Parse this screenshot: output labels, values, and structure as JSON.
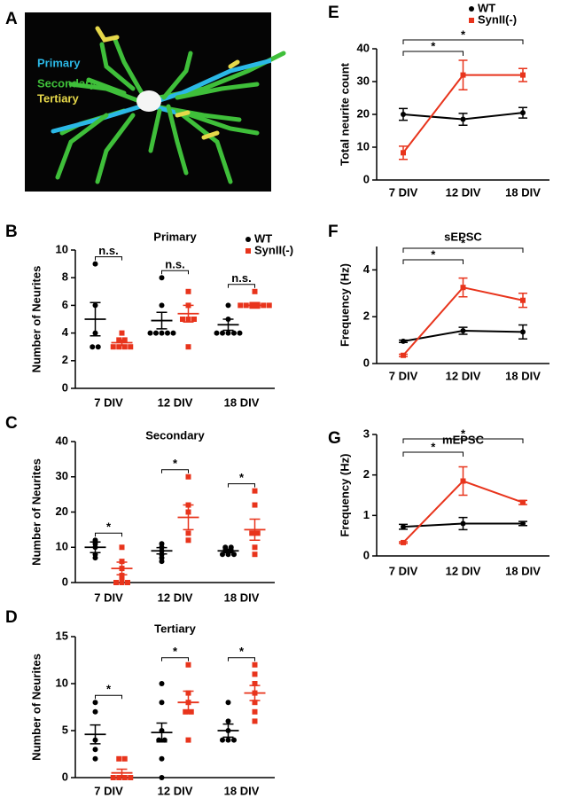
{
  "panel_a": {
    "letter": "A",
    "labels": [
      "Primary",
      "Secondary",
      "Tertiary"
    ],
    "label_colors": [
      "#2bb8e6",
      "#3fbf3a",
      "#e6d84a"
    ]
  },
  "chart_data": [
    {
      "type": "dotplot",
      "panel": "B",
      "title": "Primary",
      "ylabel": "Number of Neurites",
      "categories": [
        "7 DIV",
        "12 DIV",
        "18 DIV"
      ],
      "ylim": [
        0,
        10
      ],
      "yticks": [
        0,
        2,
        4,
        6,
        8,
        10
      ],
      "annotations": [
        "n.s.",
        "n.s.",
        "n.s."
      ],
      "series": [
        {
          "name": "WT",
          "color": "#000000",
          "marker": "circle",
          "points": [
            [
              9,
              6,
              4,
              3,
              3
            ],
            [
              8,
              6,
              4,
              4,
              4,
              4,
              4
            ],
            [
              6,
              5,
              4,
              4,
              4,
              4,
              4
            ]
          ],
          "mean": [
            5.0,
            4.9,
            4.6
          ],
          "sem": [
            1.2,
            0.6,
            0.4
          ]
        },
        {
          "name": "SynII(-)",
          "color": "#e8341c",
          "marker": "square",
          "points": [
            [
              4,
              3.5,
              3.5,
              3,
              3,
              3,
              3
            ],
            [
              7,
              6,
              5,
              5,
              5,
              3
            ],
            [
              7,
              6,
              6,
              6,
              6,
              6,
              6
            ]
          ],
          "mean": [
            3.3,
            5.4,
            6.0
          ],
          "sem": [
            0.2,
            0.6,
            0.2
          ]
        }
      ]
    },
    {
      "type": "dotplot",
      "panel": "C",
      "title": "Secondary",
      "ylabel": "Number of Neurites",
      "categories": [
        "7 DIV",
        "12 DIV",
        "18 DIV"
      ],
      "ylim": [
        0,
        40
      ],
      "yticks": [
        0,
        10,
        20,
        30,
        40
      ],
      "annotations": [
        "*",
        "*",
        "*"
      ],
      "series": [
        {
          "color": "#000000",
          "marker": "circle",
          "points": [
            [
              12,
              11,
              10,
              8,
              7
            ],
            [
              11,
              10,
              9,
              8,
              7,
              6
            ],
            [
              10,
              10,
              9,
              9,
              8,
              8,
              8
            ]
          ],
          "mean": [
            10,
            9,
            9
          ],
          "sem": [
            1.5,
            0.9,
            0.5
          ]
        },
        {
          "color": "#e8341c",
          "marker": "square",
          "points": [
            [
              10,
              6,
              4,
              2,
              1,
              0,
              0,
              0
            ],
            [
              30,
              22,
              20,
              14,
              12
            ],
            [
              26,
              22,
              14,
              14,
              10,
              8
            ]
          ],
          "mean": [
            4,
            18.5,
            15
          ],
          "sem": [
            1.8,
            3.5,
            3
          ]
        }
      ]
    },
    {
      "type": "dotplot",
      "panel": "D",
      "title": "Tertiary",
      "ylabel": "Number of Neurites",
      "categories": [
        "7 DIV",
        "12 DIV",
        "18 DIV"
      ],
      "ylim": [
        0,
        15
      ],
      "yticks": [
        0,
        5,
        10,
        15
      ],
      "annotations": [
        "*",
        "*",
        "*"
      ],
      "series": [
        {
          "color": "#000000",
          "marker": "circle",
          "points": [
            [
              8,
              7,
              4,
              3,
              2
            ],
            [
              10,
              8,
              5,
              4,
              4,
              2,
              0
            ],
            [
              8,
              6,
              5,
              4,
              4,
              4
            ]
          ],
          "mean": [
            4.6,
            4.8,
            5
          ],
          "sem": [
            1,
            1,
            0.7
          ]
        },
        {
          "color": "#e8341c",
          "marker": "square",
          "points": [
            [
              2,
              2,
              0,
              0,
              0,
              0
            ],
            [
              12,
              9,
              8,
              7,
              7,
              4
            ],
            [
              12,
              11,
              10,
              9,
              8,
              7,
              6
            ]
          ],
          "mean": [
            0.5,
            8,
            9
          ],
          "sem": [
            0.4,
            1.2,
            0.8
          ]
        }
      ]
    },
    {
      "type": "line",
      "panel": "E",
      "ylabel": "Total neurite count",
      "categories": [
        "7 DIV",
        "12 DIV",
        "18 DIV"
      ],
      "ylim": [
        0,
        40
      ],
      "yticks": [
        0,
        10,
        20,
        30,
        40
      ],
      "annotations": [
        "*",
        "*"
      ],
      "series": [
        {
          "name": "WT",
          "color": "#000000",
          "marker": "circle",
          "values": [
            20,
            18.5,
            20.5
          ],
          "errors": [
            1.8,
            1.8,
            1.6
          ]
        },
        {
          "name": "SynII(-)",
          "color": "#e8341c",
          "marker": "square",
          "values": [
            8.3,
            32,
            32
          ],
          "errors": [
            2,
            4.5,
            2
          ]
        }
      ]
    },
    {
      "type": "line",
      "panel": "F",
      "title": "sEPSC",
      "ylabel": "Frequency (Hz)",
      "categories": [
        "7 DIV",
        "12 DIV",
        "18 DIV"
      ],
      "ylim": [
        0,
        5
      ],
      "yticks": [
        0,
        2,
        4
      ],
      "annotations": [
        "*",
        "*"
      ],
      "series": [
        {
          "color": "#000000",
          "marker": "circle",
          "values": [
            0.95,
            1.4,
            1.35
          ],
          "errors": [
            0.05,
            0.15,
            0.3
          ]
        },
        {
          "color": "#e8341c",
          "marker": "square",
          "values": [
            0.35,
            3.25,
            2.7
          ],
          "errors": [
            0.05,
            0.4,
            0.3
          ]
        }
      ]
    },
    {
      "type": "line",
      "panel": "G",
      "title": "mEPSC",
      "ylabel": "Frequency (Hz)",
      "categories": [
        "7 DIV",
        "12 DIV",
        "18 DIV"
      ],
      "ylim": [
        0,
        3
      ],
      "yticks": [
        0,
        1,
        2,
        3
      ],
      "annotations": [
        "*",
        "*"
      ],
      "series": [
        {
          "color": "#000000",
          "marker": "circle",
          "values": [
            0.72,
            0.8,
            0.8
          ],
          "errors": [
            0.06,
            0.15,
            0.05
          ]
        },
        {
          "color": "#e8341c",
          "marker": "square",
          "values": [
            0.33,
            1.85,
            1.32
          ],
          "errors": [
            0.02,
            0.35,
            0.05
          ]
        }
      ]
    }
  ]
}
